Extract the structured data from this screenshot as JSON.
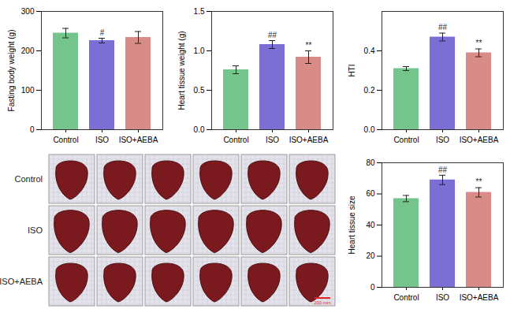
{
  "chart_data": [
    {
      "type": "bar",
      "y_label": "Fasting body weight (g)",
      "categories": [
        "Control",
        "ISO",
        "ISO+AEBA"
      ],
      "values": [
        245,
        226,
        234
      ],
      "errors": [
        12,
        6,
        15
      ],
      "annotations": [
        null,
        "#",
        null
      ],
      "colors": [
        "#74c48b",
        "#7b6fd6",
        "#d98b87"
      ],
      "ylim": [
        0,
        300
      ],
      "yticks": [
        0,
        100,
        200,
        300
      ]
    },
    {
      "type": "bar",
      "y_label": "Heart tissue weight (g)",
      "categories": [
        "Control",
        "ISO",
        "ISO+AEBA"
      ],
      "values": [
        0.76,
        1.08,
        0.92
      ],
      "errors": [
        0.05,
        0.05,
        0.08
      ],
      "annotations": [
        null,
        "##",
        "**"
      ],
      "colors": [
        "#74c48b",
        "#7b6fd6",
        "#d98b87"
      ],
      "ylim": [
        0,
        1.5
      ],
      "yticks": [
        {
          "value": 0,
          "label": "0.0"
        },
        0.5,
        {
          "value": 1,
          "label": "1.0"
        },
        1.5
      ]
    },
    {
      "type": "bar",
      "y_label": "HTI",
      "categories": [
        "Control",
        "ISO",
        "ISO+AEBA"
      ],
      "values": [
        0.31,
        0.47,
        0.39
      ],
      "errors": [
        0.01,
        0.02,
        0.02
      ],
      "annotations": [
        null,
        "##",
        "**"
      ],
      "colors": [
        "#74c48b",
        "#7b6fd6",
        "#d98b87"
      ],
      "ylim": [
        0,
        0.6
      ],
      "yticks": [
        {
          "value": 0,
          "label": "0.0"
        },
        0.2,
        0.4
      ]
    },
    {
      "type": "bar",
      "y_label": "Heart tissue size",
      "categories": [
        "Control",
        "ISO",
        "ISO+AEBA"
      ],
      "values": [
        57,
        69,
        61
      ],
      "errors": [
        2,
        3,
        3
      ],
      "annotations": [
        null,
        "##",
        "**"
      ],
      "colors": [
        "#74c48b",
        "#7b6fd6",
        "#d98b87"
      ],
      "ylim": [
        0,
        80
      ],
      "yticks": [
        0,
        20,
        40,
        60,
        80
      ]
    }
  ],
  "photo_panel": {
    "row_labels": [
      "Control",
      "ISO",
      "ISO+AEBA"
    ],
    "scale_bar": "200 mm"
  }
}
